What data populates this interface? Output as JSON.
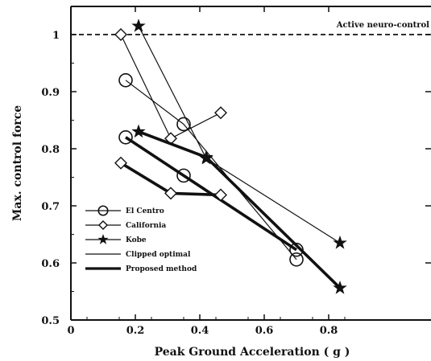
{
  "chart_data": {
    "type": "line",
    "xlabel": "Peak Ground Acceleration ( g )",
    "ylabel": "Max. control force",
    "xlim": [
      0,
      0.9
    ],
    "ylim": [
      0.5,
      1.05
    ],
    "xticks": [
      "0",
      "0.2",
      "0.4",
      "0.6",
      "0.8"
    ],
    "yticks": [
      "0.5",
      "0.6",
      "0.7",
      "0.8",
      "0.9",
      "1"
    ],
    "grid": false,
    "legend_position": "bottom-left",
    "reference_line": {
      "y": 1.0,
      "label": "Active neuro-control",
      "style": "dashed"
    },
    "legend": [
      {
        "label": "El Centro",
        "marker": "circle"
      },
      {
        "label": "California",
        "marker": "diamond"
      },
      {
        "label": "Kobe",
        "marker": "star"
      },
      {
        "label": "Clipped optimal",
        "line": "thin"
      },
      {
        "label": "Proposed method",
        "line": "thick"
      }
    ],
    "series": [
      {
        "earthquake": "El Centro",
        "method": "Clipped optimal",
        "marker": "circle",
        "line": "thin",
        "x": [
          0.17,
          0.35,
          0.7
        ],
        "y": [
          0.92,
          0.843,
          0.606
        ]
      },
      {
        "earthquake": "El Centro",
        "method": "Proposed method",
        "marker": "circle",
        "line": "thick",
        "x": [
          0.17,
          0.35,
          0.7
        ],
        "y": [
          0.82,
          0.753,
          0.623
        ]
      },
      {
        "earthquake": "California",
        "method": "Clipped optimal",
        "marker": "diamond",
        "line": "thin",
        "x": [
          0.155,
          0.31,
          0.465
        ],
        "y": [
          1.0,
          0.818,
          0.863
        ]
      },
      {
        "earthquake": "California",
        "method": "Proposed method",
        "marker": "diamond",
        "line": "thick",
        "x": [
          0.155,
          0.31,
          0.465
        ],
        "y": [
          0.775,
          0.722,
          0.719
        ]
      },
      {
        "earthquake": "Kobe",
        "method": "Clipped optimal",
        "marker": "star",
        "line": "thin",
        "x": [
          0.21,
          0.42,
          0.835
        ],
        "y": [
          1.015,
          0.783,
          0.635
        ]
      },
      {
        "earthquake": "Kobe",
        "method": "Proposed method",
        "marker": "star",
        "line": "thick",
        "x": [
          0.21,
          0.42,
          0.835
        ],
        "y": [
          0.83,
          0.785,
          0.556
        ]
      }
    ]
  }
}
